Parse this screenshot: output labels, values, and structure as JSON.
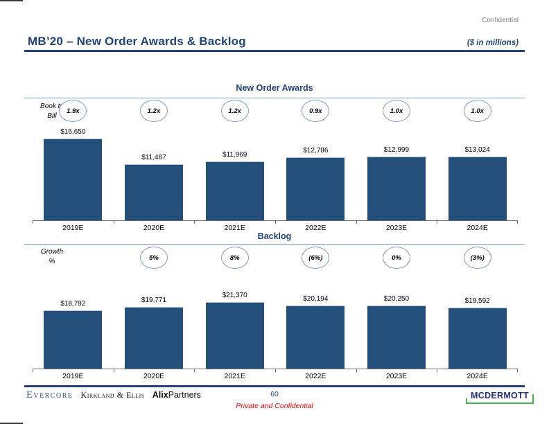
{
  "page": {
    "classification": "Confidential",
    "title": "MB’20 – New Order Awards & Backlog",
    "units_note": "($ in millions)",
    "page_number": "60",
    "footer_note": "Private and Confidential"
  },
  "footer_logos": {
    "evercore": "Evercore",
    "kirkland_ellis": "Kirkland & Ellis",
    "alix_bold": "Alix",
    "alix_light": "Partners",
    "mcdermott": "MCDERMOTT"
  },
  "colors": {
    "navy_text": "#1F4379",
    "bar_fill": "#254F7B",
    "circle_border": "#7E9CC0",
    "divider_blue": "#7E9CC0",
    "axis_gray": "#6B6B6B",
    "confidential_gray": "#808080",
    "footer_red": "#FF0000",
    "mcdermott_green": "#44B244",
    "mcdermott_navy": "#232E87"
  },
  "chart_data": [
    {
      "type": "bar",
      "title": "New Order Awards",
      "metric_label_lines": [
        "Book to",
        "Bill"
      ],
      "categories": [
        "2019E",
        "2020E",
        "2021E",
        "2022E",
        "2023E",
        "2024E"
      ],
      "values": [
        16650,
        11487,
        11969,
        12786,
        12999,
        13024
      ],
      "value_labels": [
        "$16,650",
        "$11,487",
        "$11,969",
        "$12,786",
        "$12,999",
        "$13,024"
      ],
      "circle_labels": [
        "1.9x",
        "1.2x",
        "1.2x",
        "0.9x",
        "1.0x",
        "1.0x"
      ],
      "circle_metric": "Book to Bill",
      "xlabel": "",
      "ylabel": "",
      "ylim": [
        0,
        17500
      ],
      "grid": false,
      "legend": "none"
    },
    {
      "type": "bar",
      "title": "Backlog",
      "metric_label_lines": [
        "Growth",
        "%"
      ],
      "categories": [
        "2019E",
        "2020E",
        "2021E",
        "2022E",
        "2023E",
        "2024E"
      ],
      "values": [
        18792,
        19771,
        21370,
        20194,
        20250,
        19592
      ],
      "value_labels": [
        "$18,792",
        "$19,771",
        "$21,370",
        "$20,194",
        "$20,250",
        "$19,592"
      ],
      "circle_labels": [
        "",
        "5%",
        "8%",
        "(6%)",
        "0%",
        "(3%)"
      ],
      "circle_metric": "Growth %",
      "xlabel": "",
      "ylabel": "",
      "ylim": [
        0,
        22500
      ],
      "grid": false,
      "legend": "none"
    }
  ]
}
